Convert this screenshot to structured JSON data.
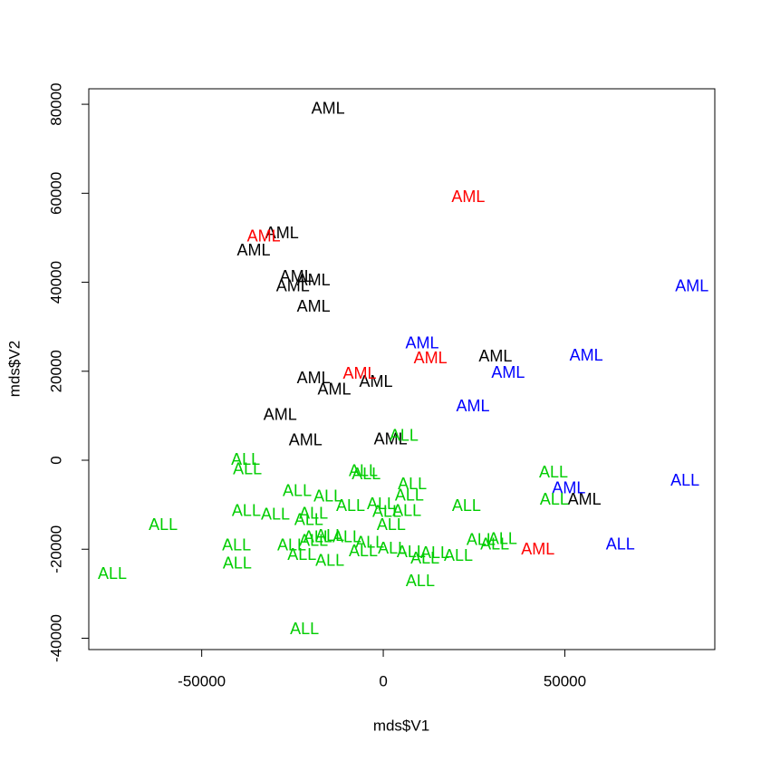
{
  "chart_data": {
    "type": "scatter",
    "xlabel": "mds$V1",
    "ylabel": "mds$V2",
    "xlim": [
      -81100,
      91300
    ],
    "ylim": [
      -42550,
      83480
    ],
    "xticks": [
      -50000,
      0,
      50000
    ],
    "yticks": [
      -40000,
      -20000,
      0,
      20000,
      40000,
      60000,
      80000
    ],
    "series": [
      {
        "color": "#000000",
        "x": [
          -15200,
          -27900,
          -35700,
          -23900,
          -19200,
          -24900,
          -19200,
          30900,
          -19200,
          -13500,
          -2000,
          -28400,
          -21400,
          2000,
          55400
        ],
        "y": [
          78800,
          50900,
          47000,
          41100,
          40300,
          38900,
          34400,
          23200,
          18300,
          15700,
          17500,
          10000,
          4300,
          4500,
          -9000
        ],
        "labels": [
          "AML",
          "AML",
          "AML",
          "AML",
          "AML",
          "AML",
          "AML",
          "AML",
          "AML",
          "AML",
          "AML",
          "AML",
          "AML",
          "AML",
          "AML"
        ]
      },
      {
        "color": "#ff0000",
        "x": [
          23400,
          -32900,
          13000,
          -6500,
          42600
        ],
        "y": [
          59000,
          50100,
          22800,
          19300,
          -20200
        ],
        "labels": [
          "AML",
          "AML",
          "AML",
          "AML",
          "AML"
        ]
      },
      {
        "color": "#0000ff",
        "x": [
          85000,
          10700,
          55900,
          34400,
          24700,
          51100
        ],
        "y": [
          38900,
          26100,
          23400,
          19500,
          12000,
          -6500
        ],
        "labels": [
          "AML",
          "AML",
          "AML",
          "AML",
          "AML",
          "AML"
        ]
      },
      {
        "color": "#0000ff",
        "x": [
          83100,
          65300
        ],
        "y": [
          -4700,
          -19100
        ],
        "labels": [
          "ALL",
          "ALL"
        ]
      },
      {
        "color": "#00cd00",
        "x": [
          5700,
          -37900,
          -37400,
          -5500,
          -4700,
          46900,
          8000,
          -23700,
          7200,
          -15200,
          47100,
          22900,
          -37700,
          -9000,
          -500,
          6500,
          -29700,
          -19200,
          1000,
          -20500,
          -60600,
          2200,
          -14700,
          -10000,
          -18000,
          26900,
          32900,
          -40400,
          -25200,
          -19200,
          -3700,
          30700,
          2500,
          -5500,
          7700,
          14200,
          20700,
          -22400,
          -14700,
          11500,
          -40200,
          -74600,
          10200,
          -21700
        ],
        "y": [
          5300,
          0,
          -2200,
          -2600,
          -3300,
          -2900,
          -5500,
          -7100,
          -8100,
          -8300,
          -9000,
          -10400,
          -11600,
          -10400,
          -10000,
          -11600,
          -12400,
          -12200,
          -11800,
          -13600,
          -14700,
          -14700,
          -17100,
          -17500,
          -17500,
          -18100,
          -17900,
          -19300,
          -19300,
          -18300,
          -18700,
          -19100,
          -20000,
          -20600,
          -20800,
          -21000,
          -21600,
          -21400,
          -22800,
          -22200,
          -23400,
          -25700,
          -27300,
          -38100
        ],
        "labels": [
          "ALL",
          "ALL",
          "ALL",
          "ALL",
          "ALL",
          "ALL",
          "ALL",
          "ALL",
          "ALL",
          "ALL",
          "ALL",
          "ALL",
          "ALL",
          "ALL",
          "ALL",
          "ALL",
          "ALL",
          "ALL",
          "ALL",
          "ALL",
          "ALL",
          "ALL",
          "ALL",
          "ALL",
          "ALL",
          "ALL",
          "ALL",
          "ALL",
          "ALL",
          "ALL",
          "ALL",
          "ALL",
          "ALL",
          "ALL",
          "ALL",
          "ALL",
          "ALL",
          "ALL",
          "ALL",
          "ALL",
          "ALL",
          "ALL",
          "ALL",
          "ALL"
        ]
      }
    ]
  }
}
